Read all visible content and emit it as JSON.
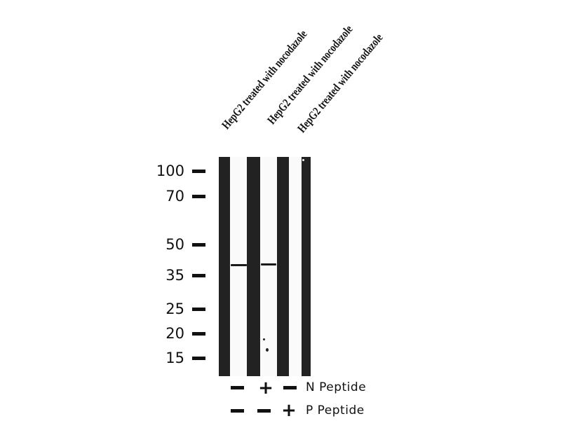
{
  "lanes": [
    {
      "label": "HepG2 treated with nocodazole",
      "n_peptide": "-",
      "p_peptide": "-",
      "band_kda": 40
    },
    {
      "label": "HepG2 treated with nocodazole",
      "n_peptide": "+",
      "p_peptide": "-",
      "band_kda": 40
    },
    {
      "label": "HepG2 treated with nocodazole",
      "n_peptide": "-",
      "p_peptide": "+",
      "band_kda": null
    }
  ],
  "markers": [
    "100",
    "70",
    "50",
    "35",
    "25",
    "20",
    "15"
  ],
  "rows": {
    "n_label": "N Peptide",
    "p_label": "P Peptide",
    "plus": "+"
  }
}
